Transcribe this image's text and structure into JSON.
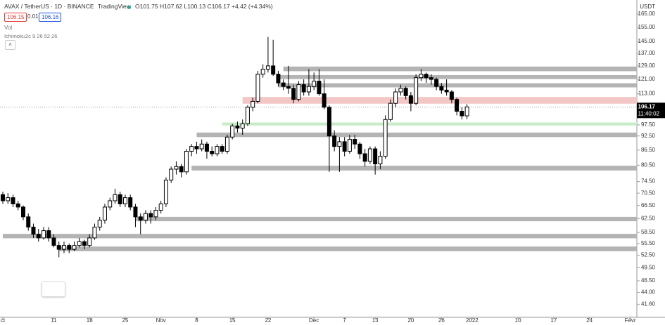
{
  "header": {
    "symbol": "AVAX / TetherUS · 1D · BINANCE",
    "brand": "TradingView",
    "ohlc_legend": "O101.75 H107.62 L100.13 C106.17 +4.42 (+4.34%)",
    "bid": "106.15",
    "spread": "0.01",
    "ask": "106.16",
    "vol": "Vol",
    "indicator": "Ichimoku2c 9 26 52 26"
  },
  "chart_data": {
    "type": "candlestick",
    "log_scale": true,
    "currency": "USDT",
    "up_color": "#ffffff",
    "down_color": "#000000",
    "border_color": "#000000",
    "last_price": {
      "value": 106.17,
      "label": "106.17"
    },
    "countdown": "11:40:02",
    "xlim": [
      -0.55,
      124.3
    ],
    "xticks": [
      {
        "value": 0,
        "label": "ct"
      },
      {
        "value": 10,
        "label": "11"
      },
      {
        "value": 17,
        "label": "18"
      },
      {
        "value": 24,
        "label": "25"
      },
      {
        "value": 31,
        "label": "Nov"
      },
      {
        "value": 38,
        "label": "8"
      },
      {
        "value": 45,
        "label": "15"
      },
      {
        "value": 52,
        "label": "22"
      },
      {
        "value": 61,
        "label": "Dec"
      },
      {
        "value": 67,
        "label": "7"
      },
      {
        "value": 73,
        "label": "13"
      },
      {
        "value": 80,
        "label": "20"
      },
      {
        "value": 86,
        "label": "26"
      },
      {
        "value": 92,
        "label": "2022"
      },
      {
        "value": 101,
        "label": "10"
      },
      {
        "value": 108,
        "label": "17"
      },
      {
        "value": 115,
        "label": "24"
      },
      {
        "value": 123,
        "label": "Févr"
      }
    ],
    "ylim": [
      39.1,
      176.4
    ],
    "yticks": [
      {
        "value": 165,
        "label": "165.00"
      },
      {
        "value": 155,
        "label": "155.00"
      },
      {
        "value": 145,
        "label": "145.00"
      },
      {
        "value": 137,
        "label": "137.00"
      },
      {
        "value": 129,
        "label": "129.00"
      },
      {
        "value": 121,
        "label": "121.00"
      },
      {
        "value": 113,
        "label": "113.00"
      },
      {
        "value": 97.5,
        "label": "97.50"
      },
      {
        "value": 92.5,
        "label": "92.50"
      },
      {
        "value": 86.5,
        "label": "86.50"
      },
      {
        "value": 80.5,
        "label": "80.50"
      },
      {
        "value": 74.5,
        "label": "74.50"
      },
      {
        "value": 70.5,
        "label": "70.50"
      },
      {
        "value": 66.5,
        "label": "66.50"
      },
      {
        "value": 62.5,
        "label": "62.50"
      },
      {
        "value": 58.5,
        "label": "58.50"
      },
      {
        "value": 55.5,
        "label": "55.50"
      },
      {
        "value": 52.5,
        "label": "52.50"
      },
      {
        "value": 49.5,
        "label": "49.50"
      },
      {
        "value": 46.5,
        "label": "46.50"
      },
      {
        "value": 44,
        "label": "44.00"
      },
      {
        "value": 41.6,
        "label": "41.60"
      }
    ],
    "levels": [
      {
        "from": 125.8,
        "to": 128.6,
        "start": 55,
        "color": "#b4b4b4"
      },
      {
        "from": 121.2,
        "to": 123.5,
        "start": 54,
        "color": "#b4b4b4"
      },
      {
        "from": 116.5,
        "to": 118.8,
        "start": 54,
        "color": "#b4b4b4"
      },
      {
        "from": 107.8,
        "to": 111.3,
        "start": 47,
        "color": "#f4c7c7"
      },
      {
        "from": 97.2,
        "to": 98.6,
        "start": 43,
        "color": "#c8ecc8"
      },
      {
        "from": 92,
        "to": 94,
        "start": 38,
        "color": "#b4b4b4"
      },
      {
        "from": 78.5,
        "to": 80.3,
        "start": 37,
        "color": "#b4b4b4"
      },
      {
        "from": 61.7,
        "to": 63,
        "start": 26,
        "color": "#b4b4b4"
      },
      {
        "from": 56.9,
        "to": 58.1,
        "start": 0,
        "color": "#b4b4b4"
      },
      {
        "from": 53.5,
        "to": 54.7,
        "start": 11,
        "color": "#b4b4b4"
      }
    ],
    "ohlc": [
      [
        70,
        71,
        67,
        68
      ],
      [
        68,
        70.5,
        67,
        69
      ],
      [
        69,
        70,
        66,
        67
      ],
      [
        67,
        68,
        65,
        66
      ],
      [
        66,
        66.5,
        62,
        63
      ],
      [
        63,
        64,
        59,
        60
      ],
      [
        60,
        61,
        57,
        58
      ],
      [
        58,
        59.5,
        56,
        57
      ],
      [
        57,
        60,
        56.5,
        59
      ],
      [
        59,
        60,
        56,
        57
      ],
      [
        57,
        58,
        54.5,
        55
      ],
      [
        55,
        56,
        52,
        54
      ],
      [
        54,
        56,
        53,
        55
      ],
      [
        55,
        55.5,
        53,
        54
      ],
      [
        54,
        56,
        53.5,
        55
      ],
      [
        55,
        57,
        54.5,
        56
      ],
      [
        56,
        56.5,
        54,
        55
      ],
      [
        55,
        58,
        54.5,
        57
      ],
      [
        57,
        61,
        56.5,
        60
      ],
      [
        60,
        63,
        59,
        62
      ],
      [
        62,
        67,
        61,
        66
      ],
      [
        66,
        69,
        65,
        68
      ],
      [
        68,
        72,
        67,
        70
      ],
      [
        70,
        71,
        66,
        67
      ],
      [
        67,
        70,
        66,
        69
      ],
      [
        69,
        70,
        65,
        66
      ],
      [
        66,
        67,
        60,
        63
      ],
      [
        63,
        64,
        58,
        62
      ],
      [
        62,
        65,
        61,
        64
      ],
      [
        64,
        65,
        61,
        63
      ],
      [
        63,
        66,
        62,
        65
      ],
      [
        65,
        68,
        64,
        67
      ],
      [
        67,
        76,
        66,
        75
      ],
      [
        75,
        80,
        74,
        79
      ],
      [
        79,
        82,
        77,
        80
      ],
      [
        80,
        81,
        76,
        78
      ],
      [
        78,
        87,
        77,
        86
      ],
      [
        86,
        89,
        84,
        88
      ],
      [
        88,
        90,
        85,
        87
      ],
      [
        87,
        91,
        86,
        89
      ],
      [
        89,
        90,
        83,
        86
      ],
      [
        86,
        88,
        84,
        85
      ],
      [
        85,
        89,
        84,
        88
      ],
      [
        88,
        89,
        85,
        86
      ],
      [
        86,
        93,
        85,
        92
      ],
      [
        92,
        98,
        91,
        97
      ],
      [
        97,
        99,
        94,
        96
      ],
      [
        96,
        100,
        93,
        98
      ],
      [
        98,
        107,
        97,
        106
      ],
      [
        106,
        111,
        104,
        109
      ],
      [
        109,
        126,
        108,
        124
      ],
      [
        124,
        130,
        122,
        127
      ],
      [
        127,
        148,
        125,
        129
      ],
      [
        129,
        146,
        123,
        124
      ],
      [
        124,
        126,
        117,
        119
      ],
      [
        119,
        121,
        115,
        117
      ],
      [
        117,
        129,
        113,
        116
      ],
      [
        116,
        118,
        108,
        110
      ],
      [
        110,
        120,
        109,
        118
      ],
      [
        118,
        121,
        112,
        114
      ],
      [
        114,
        127,
        112,
        117
      ],
      [
        117,
        125,
        115,
        120
      ],
      [
        120,
        127,
        112,
        113
      ],
      [
        113,
        121,
        105,
        106
      ],
      [
        106,
        107,
        78,
        92.5
      ],
      [
        92.5,
        95,
        86,
        88
      ],
      [
        88,
        92,
        78,
        90
      ],
      [
        90,
        92,
        84,
        86
      ],
      [
        86,
        93,
        85,
        91
      ],
      [
        91,
        93,
        87,
        89
      ],
      [
        89,
        90,
        83,
        85
      ],
      [
        85,
        87,
        80,
        82
      ],
      [
        82,
        88,
        81,
        87
      ],
      [
        87,
        88,
        77,
        81
      ],
      [
        81,
        86,
        79,
        84
      ],
      [
        84,
        102,
        83,
        100
      ],
      [
        100,
        110,
        99,
        108
      ],
      [
        108,
        116,
        106,
        114
      ],
      [
        114,
        118,
        112,
        116
      ],
      [
        116,
        117,
        110,
        112
      ],
      [
        112,
        114,
        104,
        108
      ],
      [
        108,
        124,
        107,
        122
      ],
      [
        122,
        127,
        120,
        124
      ],
      [
        124,
        125,
        119,
        122
      ],
      [
        122,
        124,
        118,
        121
      ],
      [
        121,
        122,
        115,
        117
      ],
      [
        117,
        119,
        113,
        115
      ],
      [
        115,
        121,
        112,
        114
      ],
      [
        114,
        115,
        108,
        110
      ],
      [
        110,
        111,
        102,
        104
      ],
      [
        104,
        106,
        100,
        101.75
      ],
      [
        101.75,
        107.62,
        100.13,
        106.17
      ]
    ]
  }
}
